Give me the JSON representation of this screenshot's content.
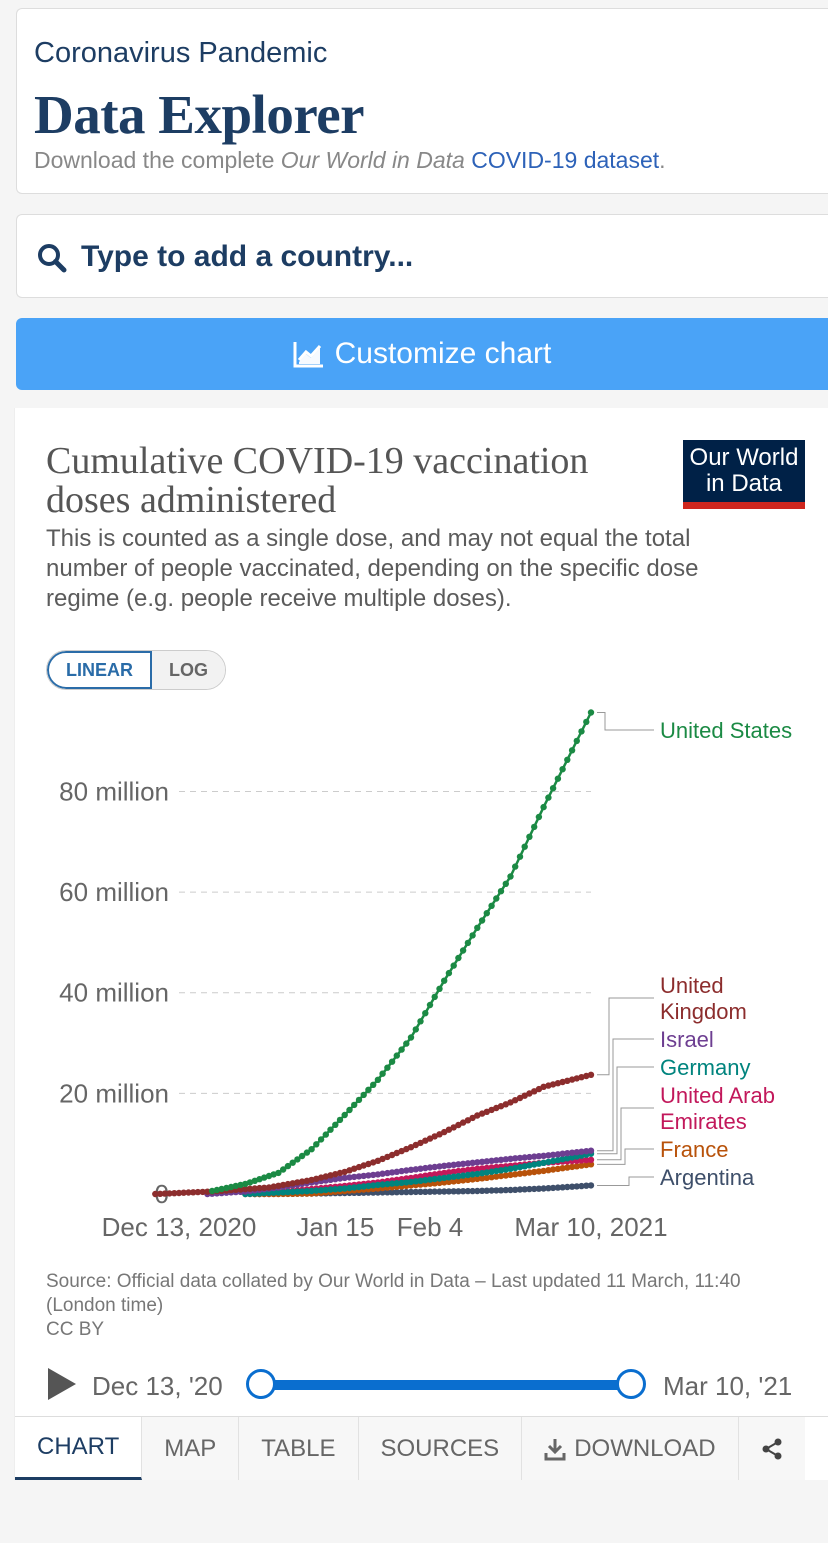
{
  "header": {
    "supertitle": "Coronavirus Pandemic",
    "title": "Data Explorer",
    "desc_prefix": "Download the complete ",
    "desc_italic": "Our World in Data",
    "desc_link": "COVID-19 dataset",
    "desc_suffix": "."
  },
  "search": {
    "placeholder": "Type to add a country..."
  },
  "customize": {
    "label": "Customize chart"
  },
  "chart_card": {
    "logo_line1": "Our World",
    "logo_line2": "in Data",
    "scale_linear": "LINEAR",
    "scale_log": "LOG",
    "source_note": "Source: Official data collated by Our World in Data – Last updated 11 March, 11:40 (London time)",
    "license": "CC BY"
  },
  "timeline": {
    "start_label": "Dec 13, '20",
    "end_label": "Mar 10, '21"
  },
  "tabs": [
    "CHART",
    "MAP",
    "TABLE",
    "SOURCES",
    "DOWNLOAD"
  ],
  "icons": {
    "search": "search-icon",
    "customize": "line-chart-icon",
    "play": "play-icon",
    "download": "download-icon",
    "share": "share-icon"
  },
  "colors": {
    "accent": "#4aa3f7",
    "title": "#1d3d63",
    "timeline": "#0a6ecf",
    "logo_bg": "#002147",
    "logo_bar": "#ce261e"
  },
  "chart_data": {
    "type": "line",
    "title": "Cumulative COVID-19 vaccination doses administered",
    "subtitle": "This is counted as a single dose, and may not equal the total number of people vaccinated, depending on the specific dose regime (e.g. people receive multiple doses).",
    "scale": "linear",
    "x_start": "2020-12-13",
    "x_end": "2021-03-10",
    "x_ticks": [
      {
        "date": "2020-12-13",
        "label": "Dec 13, 2020"
      },
      {
        "date": "2021-01-15",
        "label": "Jan 15"
      },
      {
        "date": "2021-02-04",
        "label": "Feb 4"
      },
      {
        "date": "2021-03-10",
        "label": "Mar 10, 2021"
      }
    ],
    "y_ticks": [
      {
        "value": 0,
        "label": "0"
      },
      {
        "value": 20000000,
        "label": "20 million"
      },
      {
        "value": 40000000,
        "label": "40 million"
      },
      {
        "value": 60000000,
        "label": "60 million"
      },
      {
        "value": 80000000,
        "label": "80 million"
      }
    ],
    "ylim": [
      0,
      95000000
    ],
    "grid": true,
    "series": [
      {
        "name": "United States",
        "label_lines": [
          "United States"
        ],
        "color": "#1b8a44",
        "points": [
          [
            "2020-12-20",
            0.6
          ],
          [
            "2020-12-27",
            2.0
          ],
          [
            "2021-01-03",
            4.2
          ],
          [
            "2021-01-10",
            8.9
          ],
          [
            "2021-01-17",
            15.7
          ],
          [
            "2021-01-24",
            22.7
          ],
          [
            "2021-01-31",
            31.1
          ],
          [
            "2021-02-07",
            42.4
          ],
          [
            "2021-02-14",
            52.9
          ],
          [
            "2021-02-21",
            63.1
          ],
          [
            "2021-02-28",
            76.9
          ],
          [
            "2021-03-10",
            95.7
          ]
        ]
      },
      {
        "name": "United Kingdom",
        "label_lines": [
          "United",
          "Kingdom"
        ],
        "color": "#8c2d2d",
        "points": [
          [
            "2020-12-08",
            0.0
          ],
          [
            "2020-12-20",
            0.5
          ],
          [
            "2021-01-01",
            1.3
          ],
          [
            "2021-01-10",
            2.8
          ],
          [
            "2021-01-17",
            4.4
          ],
          [
            "2021-01-24",
            6.6
          ],
          [
            "2021-01-31",
            9.3
          ],
          [
            "2021-02-07",
            12.3
          ],
          [
            "2021-02-14",
            15.6
          ],
          [
            "2021-02-21",
            18.2
          ],
          [
            "2021-02-28",
            21.3
          ],
          [
            "2021-03-10",
            23.7
          ]
        ]
      },
      {
        "name": "Israel",
        "label_lines": [
          "Israel"
        ],
        "color": "#6d3e91",
        "points": [
          [
            "2020-12-19",
            0.0
          ],
          [
            "2020-12-27",
            0.5
          ],
          [
            "2021-01-03",
            1.3
          ],
          [
            "2021-01-10",
            2.3
          ],
          [
            "2021-01-17",
            3.2
          ],
          [
            "2021-01-24",
            3.9
          ],
          [
            "2021-01-31",
            4.8
          ],
          [
            "2021-02-07",
            5.6
          ],
          [
            "2021-02-14",
            6.3
          ],
          [
            "2021-02-21",
            7.0
          ],
          [
            "2021-02-28",
            7.6
          ],
          [
            "2021-03-10",
            8.6
          ]
        ]
      },
      {
        "name": "Germany",
        "label_lines": [
          "Germany"
        ],
        "color": "#00847e",
        "points": [
          [
            "2020-12-27",
            0.0
          ],
          [
            "2021-01-03",
            0.3
          ],
          [
            "2021-01-10",
            0.6
          ],
          [
            "2021-01-17",
            1.1
          ],
          [
            "2021-01-24",
            1.8
          ],
          [
            "2021-01-31",
            2.4
          ],
          [
            "2021-02-07",
            3.2
          ],
          [
            "2021-02-14",
            4.0
          ],
          [
            "2021-02-21",
            5.0
          ],
          [
            "2021-02-28",
            6.2
          ],
          [
            "2021-03-10",
            8.0
          ]
        ]
      },
      {
        "name": "United Arab Emirates",
        "label_lines": [
          "United Arab",
          "Emirates"
        ],
        "color": "#c2185b",
        "points": [
          [
            "2021-01-01",
            0.2
          ],
          [
            "2021-01-10",
            1.0
          ],
          [
            "2021-01-17",
            1.6
          ],
          [
            "2021-01-24",
            2.3
          ],
          [
            "2021-01-31",
            3.2
          ],
          [
            "2021-02-07",
            4.2
          ],
          [
            "2021-02-14",
            5.0
          ],
          [
            "2021-02-21",
            5.6
          ],
          [
            "2021-02-28",
            6.2
          ],
          [
            "2021-03-10",
            6.8
          ]
        ]
      },
      {
        "name": "France",
        "label_lines": [
          "France"
        ],
        "color": "#b8520a",
        "points": [
          [
            "2020-12-27",
            0.0
          ],
          [
            "2021-01-03",
            0.0
          ],
          [
            "2021-01-10",
            0.1
          ],
          [
            "2021-01-17",
            0.6
          ],
          [
            "2021-01-24",
            1.1
          ],
          [
            "2021-01-31",
            1.7
          ],
          [
            "2021-02-07",
            2.3
          ],
          [
            "2021-02-14",
            3.0
          ],
          [
            "2021-02-21",
            3.8
          ],
          [
            "2021-02-28",
            4.6
          ],
          [
            "2021-03-10",
            5.9
          ]
        ]
      },
      {
        "name": "Argentina",
        "label_lines": [
          "Argentina"
        ],
        "color": "#3e4f6a",
        "points": [
          [
            "2020-12-29",
            0.0
          ],
          [
            "2021-01-10",
            0.1
          ],
          [
            "2021-01-17",
            0.2
          ],
          [
            "2021-01-24",
            0.3
          ],
          [
            "2021-01-31",
            0.4
          ],
          [
            "2021-02-07",
            0.5
          ],
          [
            "2021-02-14",
            0.6
          ],
          [
            "2021-02-21",
            0.8
          ],
          [
            "2021-02-28",
            1.1
          ],
          [
            "2021-03-10",
            1.7
          ]
        ]
      }
    ]
  }
}
